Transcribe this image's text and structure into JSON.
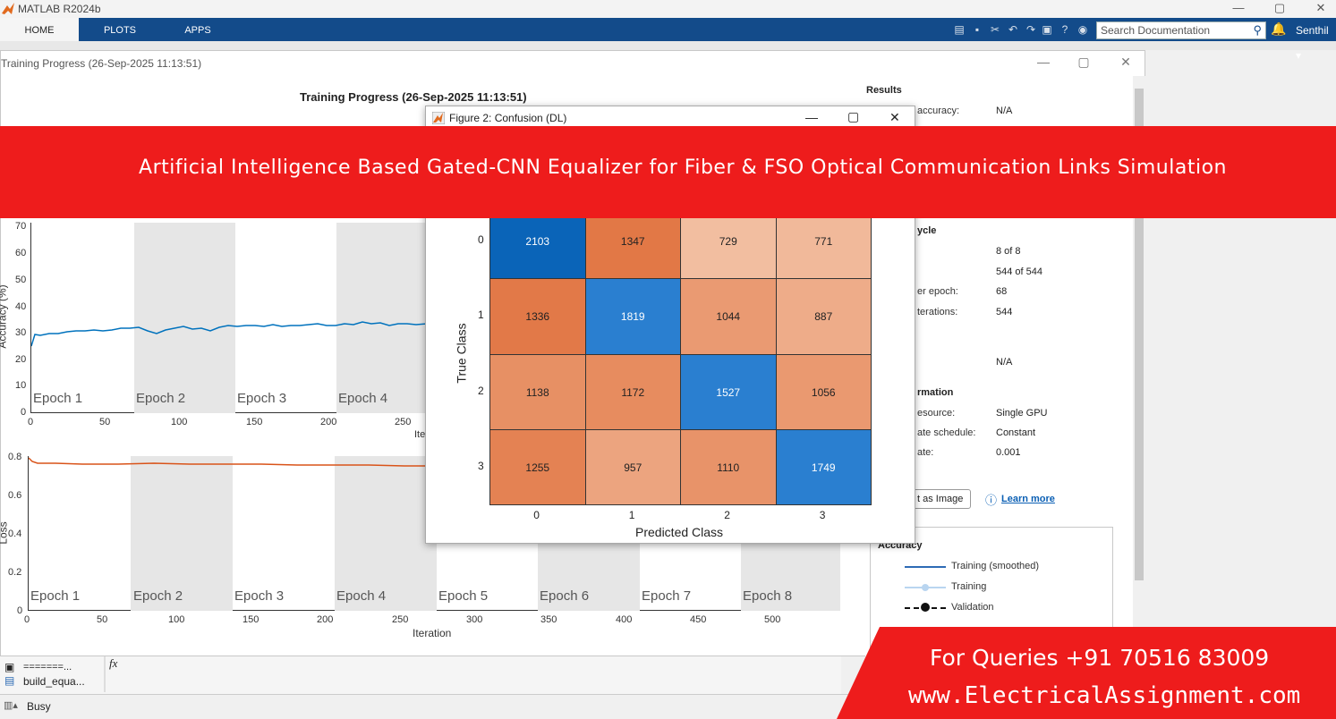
{
  "app": {
    "title": "MATLAB R2024b",
    "min": "—",
    "max": "▢",
    "close": "✕"
  },
  "ribbon": {
    "tabs": [
      "HOME",
      "PLOTS",
      "APPS"
    ],
    "search_placeholder": "Search Documentation",
    "user": "Senthil ▾"
  },
  "training_window": {
    "title": "Training Progress (26-Sep-2025 11:13:51)",
    "plot_title": "Training Progress (26-Sep-2025 11:13:51)",
    "acc_y_ticks": [
      "70",
      "60",
      "50",
      "40",
      "30",
      "20",
      "10",
      "0"
    ],
    "acc_x_ticks": [
      "0",
      "50",
      "100",
      "150",
      "200",
      "250"
    ],
    "acc_xlabel_partial": "Ite",
    "acc_ylabel_partial": "Accuracy (%)",
    "acc_epochs": [
      "Epoch 1",
      "Epoch 2",
      "Epoch 3",
      "Epoch 4"
    ],
    "loss_y_ticks": [
      "0.8",
      "0.6",
      "0.4",
      "0.2",
      "0"
    ],
    "loss_x_ticks": [
      "0",
      "50",
      "100",
      "150",
      "200",
      "250",
      "300",
      "350",
      "400",
      "450",
      "500"
    ],
    "loss_xlabel": "Iteration",
    "loss_ylabel_partial": "Loss",
    "loss_epochs": [
      "Epoch 1",
      "Epoch 2",
      "Epoch 3",
      "Epoch 4",
      "Epoch 5",
      "Epoch 6",
      "Epoch 7",
      "Epoch 8"
    ]
  },
  "results": {
    "heading": "Results",
    "rows1": [
      {
        "k": "accuracy:",
        "v": "N/A"
      }
    ],
    "cycle_heading": "ycle",
    "cycle_rows": [
      {
        "k": "",
        "v": "8 of 8"
      },
      {
        "k": "",
        "v": "544 of 544"
      },
      {
        "k": "er epoch:",
        "v": "68"
      },
      {
        "k": "terations:",
        "v": "544"
      },
      {
        "k": "",
        "v": "N/A"
      }
    ],
    "info_heading": "rmation",
    "info_rows": [
      {
        "k": "esource:",
        "v": "Single GPU"
      },
      {
        "k": "ate schedule:",
        "v": "Constant"
      },
      {
        "k": "ate:",
        "v": "0.001"
      }
    ],
    "export_label": "t as Image",
    "learn_more": "Learn more",
    "legend_title": "Accuracy",
    "legend": [
      "Training (smoothed)",
      "Training",
      "Validation"
    ]
  },
  "figure": {
    "title": "Figure 2: Confusion (DL)",
    "min": "—",
    "max": "▢",
    "close": "✕"
  },
  "chart_data": {
    "type": "heatmap",
    "title": "",
    "xlabel": "Predicted Class",
    "ylabel": "True Class",
    "x_categories": [
      "0",
      "1",
      "2",
      "3"
    ],
    "y_categories": [
      "0",
      "1",
      "2",
      "3"
    ],
    "values": [
      [
        2103,
        1347,
        729,
        771
      ],
      [
        1336,
        1819,
        1044,
        887
      ],
      [
        1138,
        1172,
        1527,
        1056
      ],
      [
        1255,
        957,
        1110,
        1749
      ]
    ],
    "colors": {
      "diagonal": "#0072bd",
      "off_diagonal": "#d95319"
    }
  },
  "banner": {
    "text": "Artificial Intelligence Based Gated-CNN Equalizer for Fiber & FSO Optical Communication Links Simulation"
  },
  "queries": {
    "line1": "For Queries +91 70516 83009",
    "line2": "www.ElectricalAssignment.com"
  },
  "workspace": {
    "item1": "=======...",
    "item2": "build_equa...",
    "fx": "fx"
  },
  "status": {
    "text": "Busy"
  }
}
